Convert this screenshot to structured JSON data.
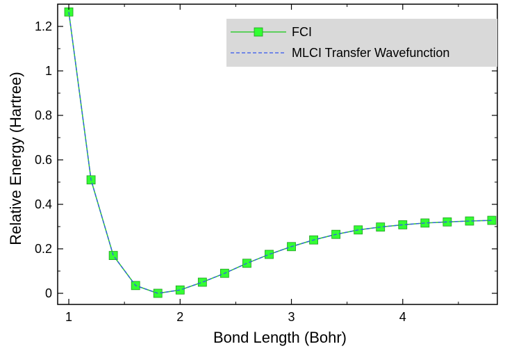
{
  "chart_data": {
    "type": "line",
    "xlabel": "Bond Length (Bohr)",
    "ylabel": "Relative Energy (Hartree)",
    "xlim": [
      0.9,
      4.85
    ],
    "ylim": [
      -0.05,
      1.3
    ],
    "x_ticks": [
      1,
      2,
      3,
      4
    ],
    "y_ticks": [
      0,
      0.2,
      0.4,
      0.6,
      0.8,
      1,
      1.2
    ],
    "x_tick_labels": [
      "1",
      "2",
      "3",
      "4"
    ],
    "y_tick_labels": [
      "0",
      "0.2",
      "0.4",
      "0.6",
      "0.8",
      "1",
      "1.2"
    ],
    "grid": false,
    "legend_position": "top-right",
    "x": [
      1.0,
      1.2,
      1.4,
      1.6,
      1.8,
      2.0,
      2.2,
      2.4,
      2.6,
      2.8,
      3.0,
      3.2,
      3.4,
      3.6,
      3.8,
      4.0,
      4.2,
      4.4,
      4.6,
      4.8
    ],
    "series": [
      {
        "name": "FCI",
        "color": "#33cc33",
        "marker_color": "#33ff33",
        "marker": "square",
        "line_style": "solid",
        "values": [
          1.265,
          0.51,
          0.17,
          0.035,
          0.0,
          0.015,
          0.05,
          0.09,
          0.135,
          0.175,
          0.21,
          0.24,
          0.265,
          0.285,
          0.298,
          0.308,
          0.316,
          0.321,
          0.325,
          0.328
        ]
      },
      {
        "name": "MLCI Transfer Wavefunction",
        "color": "#3355ee",
        "marker": "none",
        "line_style": "dashed",
        "values": [
          1.265,
          0.51,
          0.17,
          0.035,
          0.0,
          0.015,
          0.05,
          0.09,
          0.135,
          0.175,
          0.21,
          0.24,
          0.265,
          0.285,
          0.298,
          0.308,
          0.316,
          0.321,
          0.325,
          0.328
        ]
      }
    ],
    "legend_background": "#d9d9d9"
  }
}
